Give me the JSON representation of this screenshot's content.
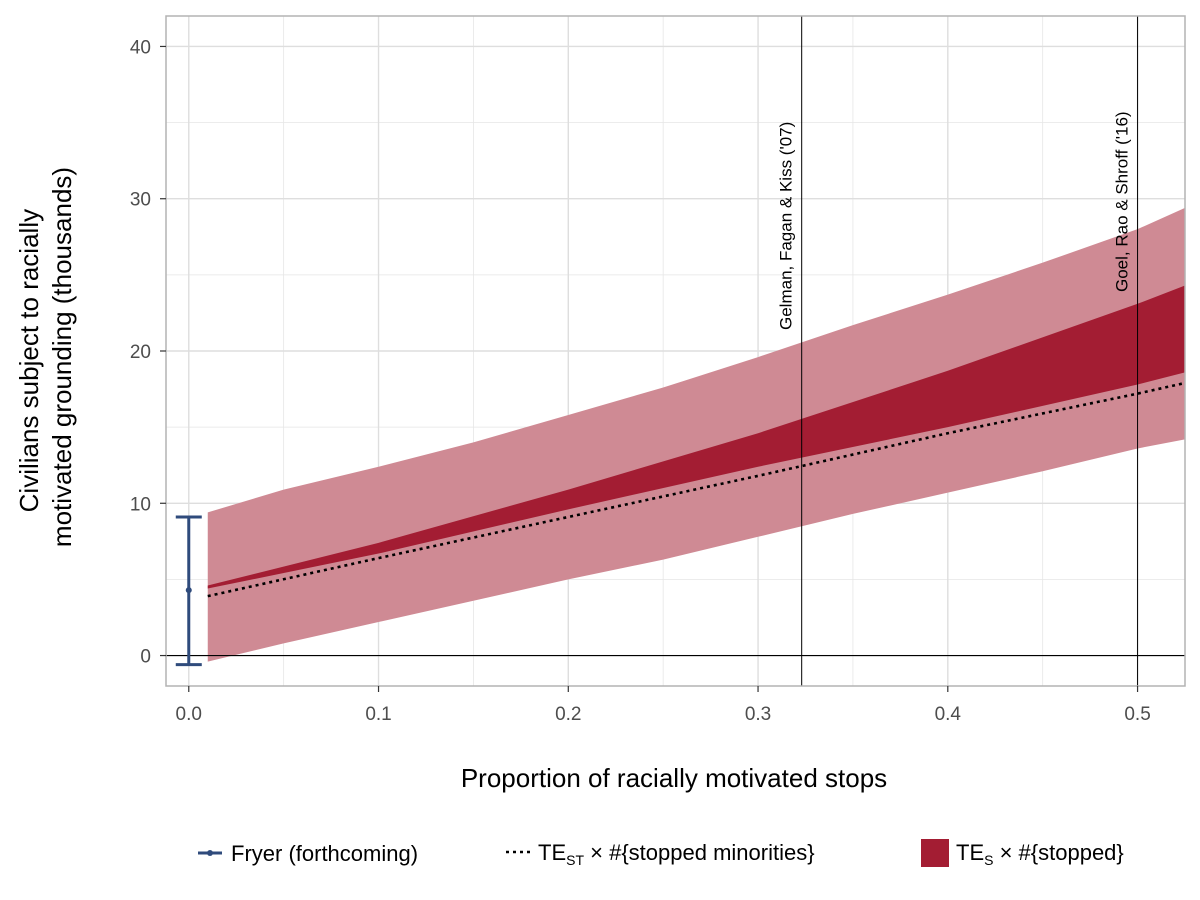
{
  "chart_data": {
    "type": "area",
    "xlabel": "Proportion of racially motivated stops",
    "ylabel_lines": [
      "Civilians subject to racially",
      "motivated grounding (thousands)"
    ],
    "xlim": [
      -0.012,
      0.525
    ],
    "ylim": [
      -2,
      42
    ],
    "x_ticks": [
      0.0,
      0.1,
      0.2,
      0.3,
      0.4,
      0.5
    ],
    "x_tick_labels": [
      "0.0",
      "0.1",
      "0.2",
      "0.3",
      "0.4",
      "0.5"
    ],
    "y_ticks": [
      0,
      10,
      20,
      30,
      40
    ],
    "y_tick_labels": [
      "0",
      "10",
      "20",
      "30",
      "40"
    ],
    "grid": true,
    "legend_position": "bottom",
    "colors": {
      "outer_band": "#cf8a94",
      "inner_band": "#a31d33",
      "dotted_line": "#000000",
      "errorbar": "#2f4b7c",
      "grid": "#e6e6e6",
      "panel_border": "#b3b3b3"
    },
    "outer_band": {
      "x": [
        0.01,
        0.05,
        0.1,
        0.15,
        0.2,
        0.25,
        0.3,
        0.35,
        0.4,
        0.45,
        0.5,
        0.525
      ],
      "upper": [
        9.4,
        10.9,
        12.4,
        14.0,
        15.8,
        17.6,
        19.6,
        21.7,
        23.7,
        25.8,
        28.0,
        29.4
      ],
      "lower": [
        -0.4,
        0.8,
        2.2,
        3.6,
        5.0,
        6.3,
        7.8,
        9.3,
        10.7,
        12.1,
        13.6,
        14.2
      ]
    },
    "inner_band": {
      "x": [
        0.01,
        0.1,
        0.2,
        0.3,
        0.4,
        0.5,
        0.525
      ],
      "upper": [
        4.6,
        7.4,
        10.9,
        14.6,
        18.7,
        23.1,
        24.3
      ],
      "lower": [
        4.4,
        6.7,
        9.6,
        12.4,
        15.0,
        17.8,
        18.6
      ]
    },
    "dotted_line": {
      "x": [
        0.01,
        0.1,
        0.2,
        0.3,
        0.4,
        0.5,
        0.525
      ],
      "y": [
        3.9,
        6.4,
        9.1,
        11.8,
        14.6,
        17.2,
        17.9
      ]
    },
    "errorbar": {
      "x": 0.0,
      "y": 4.3,
      "ymin": -0.6,
      "ymax": 9.1
    },
    "vlines": [
      {
        "x": 0.323,
        "label": "Gelman, Fagan & Kiss ('07)"
      },
      {
        "x": 0.5,
        "label": "Goel, Rao & Shroff ('16)"
      }
    ],
    "hline_y": 0,
    "legend": [
      {
        "kind": "errorbar",
        "label": "Fryer (forthcoming)"
      },
      {
        "kind": "dotted",
        "label_main": "TE",
        "label_sub": "ST",
        "label_rest": " × #{stopped minorities}"
      },
      {
        "kind": "fill",
        "label_main": "TE",
        "label_sub": "S",
        "label_rest": " × #{stopped}"
      }
    ]
  }
}
